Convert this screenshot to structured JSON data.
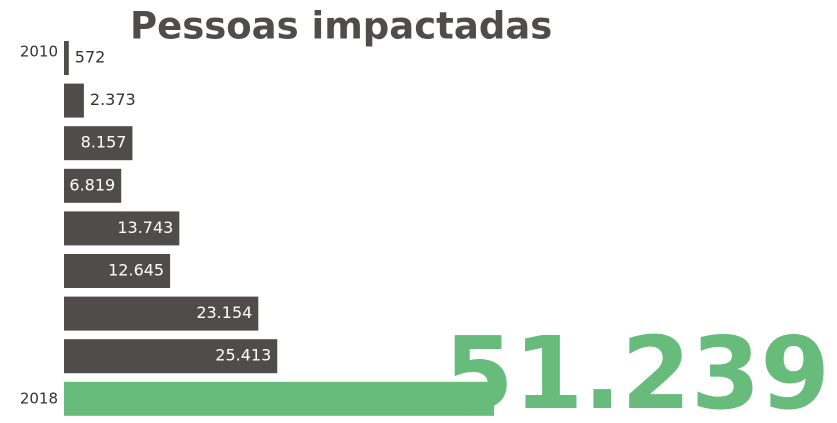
{
  "chart_data": {
    "type": "bar",
    "orientation": "horizontal",
    "title": "Pessoas impactadas",
    "categories": [
      "2010",
      null,
      null,
      null,
      null,
      null,
      null,
      null,
      "2018"
    ],
    "values": [
      572,
      2373,
      8157,
      6819,
      13743,
      12645,
      23154,
      25413,
      51239
    ],
    "value_labels": [
      "572",
      "2.373",
      "8.157",
      "6.819",
      "13.743",
      "12.645",
      "23.154",
      "25.413",
      "51.239"
    ],
    "colors": [
      "#4f4d4a",
      "#4f4d4a",
      "#4f4d4a",
      "#4f4d4a",
      "#4f4d4a",
      "#4f4d4a",
      "#4f4d4a",
      "#4f4d4a",
      "#67bb7b"
    ]
  }
}
